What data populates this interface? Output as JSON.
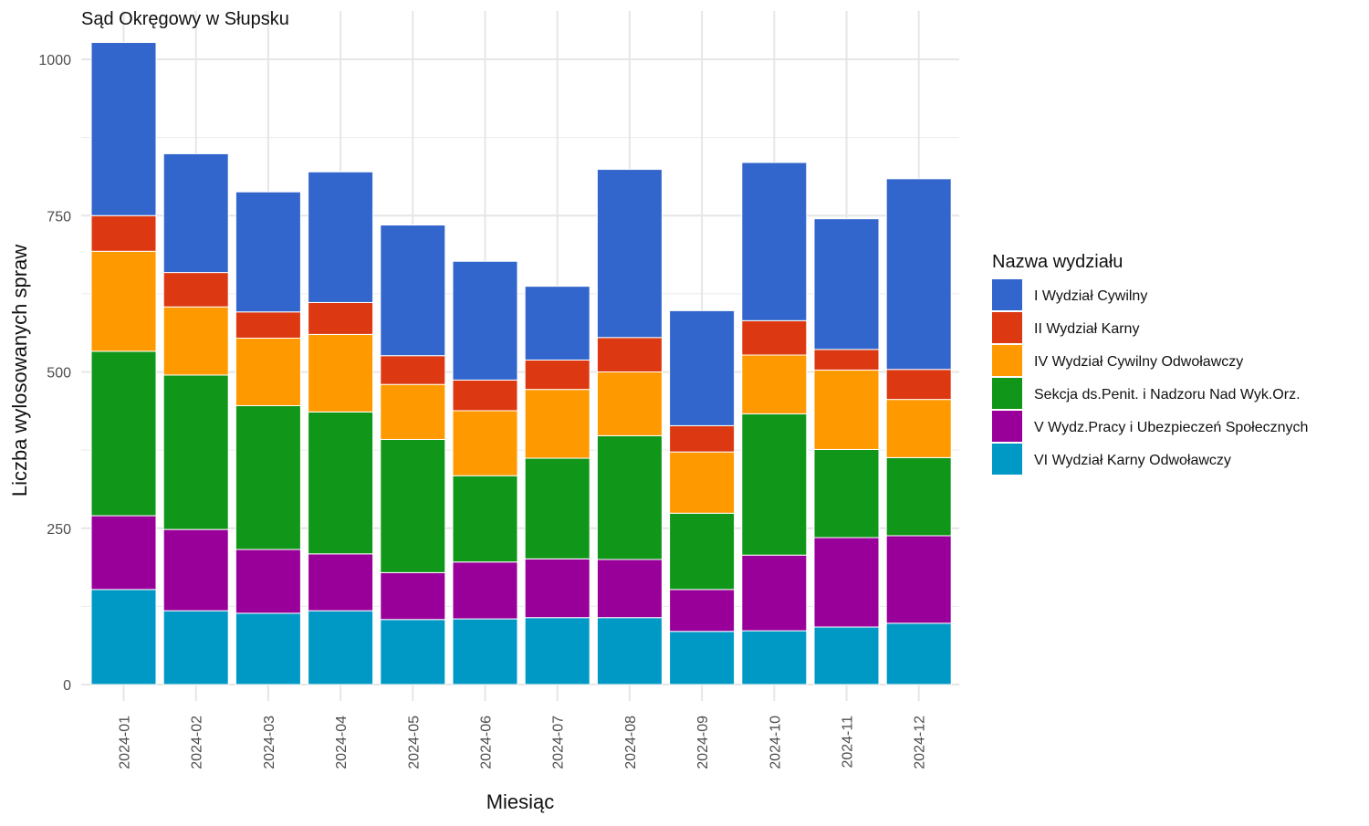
{
  "chart_data": {
    "type": "bar",
    "stacked": true,
    "title": "Sąd Okręgowy w Słupsku",
    "xlabel": "Miesiąc",
    "ylabel": "Liczba wylosowanych spraw",
    "ylim": [
      0,
      1050
    ],
    "yticks": [
      0,
      250,
      500,
      750,
      1000
    ],
    "grid": true,
    "legend": {
      "title": "Nazwa wydziału",
      "placement": "right"
    },
    "categories": [
      "2024-01",
      "2024-02",
      "2024-03",
      "2024-04",
      "2024-05",
      "2024-06",
      "2024-07",
      "2024-08",
      "2024-09",
      "2024-10",
      "2024-11",
      "2024-12"
    ],
    "series": [
      {
        "name": "I Wydział Cywilny",
        "color": "#3366cc",
        "values": [
          277,
          190,
          192,
          209,
          209,
          190,
          118,
          269,
          184,
          253,
          209,
          305
        ]
      },
      {
        "name": "II Wydział Karny",
        "color": "#dc3912",
        "values": [
          57,
          55,
          42,
          51,
          46,
          49,
          47,
          55,
          42,
          55,
          33,
          48
        ]
      },
      {
        "name": "IV Wydział Cywilny Odwoławczy",
        "color": "#ff9900",
        "values": [
          160,
          109,
          108,
          124,
          88,
          104,
          110,
          102,
          98,
          94,
          127,
          93
        ]
      },
      {
        "name": "Sekcja ds.Penit. i Nadzoru Nad Wyk.Orz.",
        "color": "#109618",
        "values": [
          263,
          247,
          230,
          227,
          213,
          138,
          161,
          198,
          122,
          226,
          141,
          125
        ]
      },
      {
        "name": "V Wydz.Pracy i Ubezpieczeń Społecznych",
        "color": "#990099",
        "values": [
          118,
          130,
          102,
          91,
          75,
          91,
          94,
          93,
          67,
          121,
          143,
          140
        ]
      },
      {
        "name": "VI Wydział Karny Odwoławczy",
        "color": "#0099c6",
        "values": [
          152,
          118,
          114,
          118,
          104,
          105,
          107,
          107,
          85,
          86,
          92,
          98
        ]
      }
    ]
  }
}
